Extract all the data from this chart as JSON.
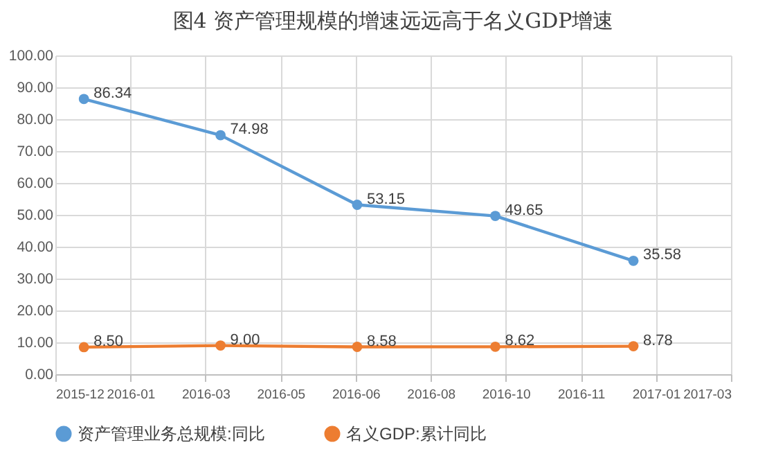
{
  "chart_data": {
    "type": "line",
    "title": "图4 资产管理规模的增速远远高于名义GDP增速",
    "x": [
      "2015-12-31",
      "2016-03-31",
      "2016-06-30",
      "2016-09-30",
      "2016-12-31"
    ],
    "series": [
      {
        "name": "资产管理业务总规模:同比",
        "color": "#5b9bd5",
        "values": [
          86.34,
          74.98,
          53.15,
          49.65,
          35.58
        ],
        "value_labels": [
          "86.34",
          "74.98",
          "53.15",
          "49.65",
          "35.58"
        ]
      },
      {
        "name": "名义GDP:累计同比",
        "color": "#ed7d31",
        "values": [
          8.5,
          9.0,
          8.58,
          8.62,
          8.78
        ],
        "value_labels": [
          "8.50",
          "9.00",
          "8.58",
          "8.62",
          "8.78"
        ]
      }
    ],
    "xlim": [
      "2015-12-12",
      "2017-03-06"
    ],
    "xticks": [
      {
        "value": "2015-12-12",
        "label": "2015-12"
      },
      {
        "value": "2016-01-31",
        "label": "2016-01"
      },
      {
        "value": "2016-03-21",
        "label": "2016-03"
      },
      {
        "value": "2016-05-10",
        "label": "2016-05"
      },
      {
        "value": "2016-06-29",
        "label": "2016-06"
      },
      {
        "value": "2016-08-18",
        "label": "2016-08"
      },
      {
        "value": "2016-10-07",
        "label": "2016-10"
      },
      {
        "value": "2016-11-26",
        "label": "2016-11"
      },
      {
        "value": "2017-01-15",
        "label": "2017-01"
      },
      {
        "value": "2017-03-06",
        "label": "2017-03"
      }
    ],
    "ylim": [
      0,
      100
    ],
    "yticks": [
      {
        "value": 0,
        "label": "0.00"
      },
      {
        "value": 10,
        "label": "10.00"
      },
      {
        "value": 20,
        "label": "20.00"
      },
      {
        "value": 30,
        "label": "30.00"
      },
      {
        "value": 40,
        "label": "40.00"
      },
      {
        "value": 50,
        "label": "50.00"
      },
      {
        "value": 60,
        "label": "60.00"
      },
      {
        "value": 70,
        "label": "70.00"
      },
      {
        "value": 80,
        "label": "80.00"
      },
      {
        "value": 90,
        "label": "90.00"
      },
      {
        "value": 100,
        "label": "100.00"
      }
    ],
    "grid": true,
    "legend": "bottom",
    "marker": "circle",
    "line_style": "solid"
  }
}
